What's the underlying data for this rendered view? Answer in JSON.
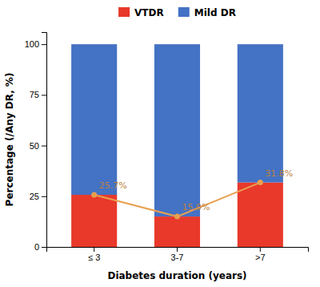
{
  "chart_data": {
    "type": "bar",
    "stacked": true,
    "categories": [
      "≤ 3",
      "3-7",
      ">7"
    ],
    "series": [
      {
        "name": "VTDR",
        "color": "#e8392a",
        "values": [
          25.7,
          15.0,
          31.8
        ]
      },
      {
        "name": "Mild DR",
        "color": "#4472c4",
        "values": [
          74.3,
          85.0,
          68.2
        ]
      },
      {
        "type": "line",
        "color": "#e8a050",
        "marker": "circle",
        "data_labels": true,
        "values": [
          25.7,
          15.0,
          31.8
        ],
        "value_labels": [
          "25.7%",
          "15.0%",
          "31.8%"
        ]
      }
    ],
    "xlabel": "Diabetes duration (years)",
    "ylabel": "Percentage (/Any DR, %)",
    "ylim": [
      0,
      106
    ],
    "yticks": [
      0,
      25,
      50,
      75,
      100
    ],
    "grid": false,
    "legend": "top"
  }
}
